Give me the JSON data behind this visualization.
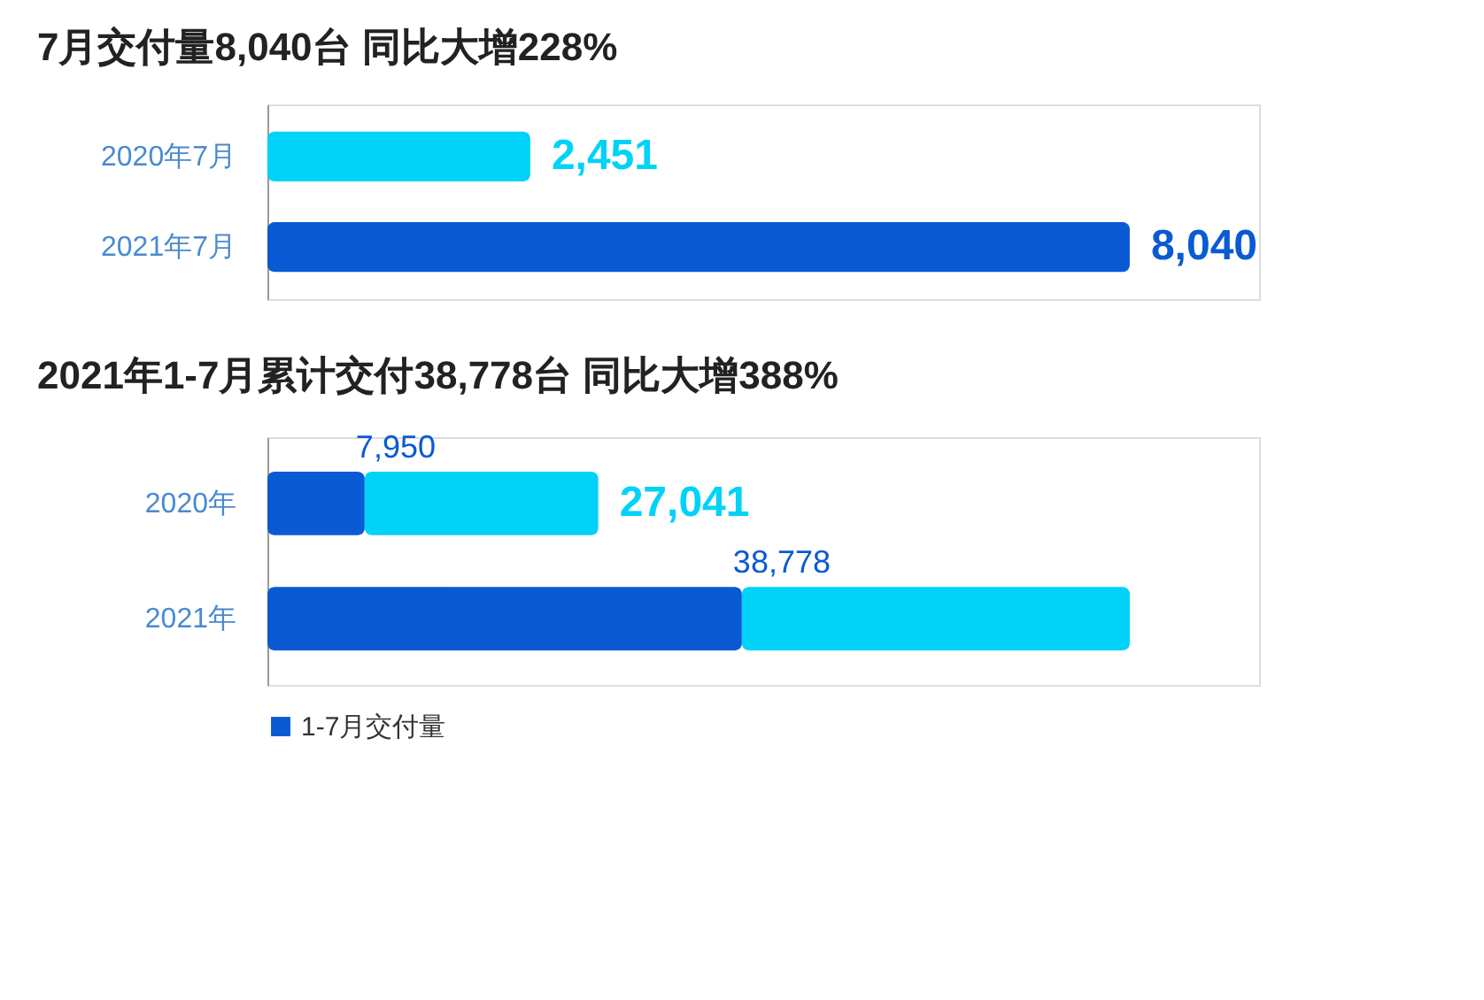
{
  "chart_data": [
    {
      "type": "bar",
      "orientation": "horizontal",
      "title": "7月交付量8,040台 同比大增228%",
      "categories": [
        "2020年7月",
        "2021年7月"
      ],
      "values": [
        2451,
        8040
      ],
      "colors": [
        "#00d2f8",
        "#0a5ad4"
      ],
      "value_labels": [
        "2,451",
        "8,040"
      ],
      "tick_labels": "y",
      "grid": false,
      "legend": false
    },
    {
      "type": "bar",
      "orientation": "horizontal",
      "stacked": true,
      "title": "2021年1-7月累计交付38,778台 同比大增388%",
      "categories": [
        "2020年",
        "2021年"
      ],
      "series": [
        {
          "name": "1-7月交付量",
          "color": "#0a5ad4",
          "values": [
            7950,
            38778
          ],
          "value_labels": [
            "7,950",
            "38,778"
          ]
        },
        {
          "color": "#00d2f8",
          "values": [
            19091,
            31700
          ]
        }
      ],
      "totals": [
        "27,041",
        null
      ],
      "tick_labels": "y",
      "grid": false,
      "legend": "bottom left"
    }
  ]
}
